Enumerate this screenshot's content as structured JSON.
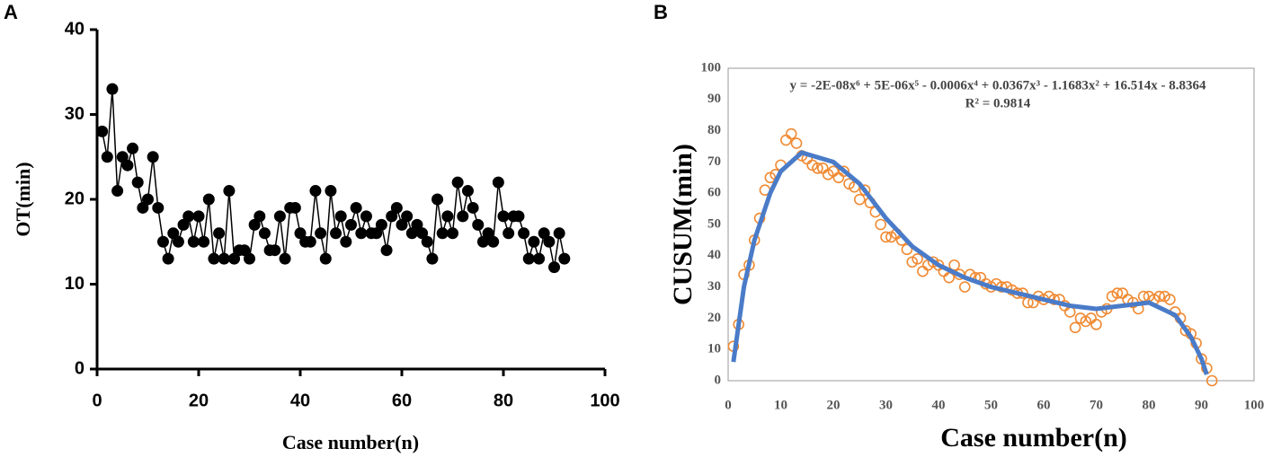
{
  "chart_data": [
    {
      "type": "line",
      "panel": "A",
      "x_label": "Case number(n)",
      "y_label": "OT(min)",
      "xlim": [
        0,
        100
      ],
      "xticks": [
        0,
        20,
        40,
        60,
        80,
        100
      ],
      "ylim": [
        0,
        40
      ],
      "yticks": [
        0,
        10,
        20,
        30,
        40
      ],
      "grid": false,
      "x": [
        1,
        2,
        3,
        4,
        5,
        6,
        7,
        8,
        9,
        10,
        11,
        12,
        13,
        14,
        15,
        16,
        17,
        18,
        19,
        20,
        21,
        22,
        23,
        24,
        25,
        26,
        27,
        28,
        29,
        30,
        31,
        32,
        33,
        34,
        35,
        36,
        37,
        38,
        39,
        40,
        41,
        42,
        43,
        44,
        45,
        46,
        47,
        48,
        49,
        50,
        51,
        52,
        53,
        54,
        55,
        56,
        57,
        58,
        59,
        60,
        61,
        62,
        63,
        64,
        65,
        66,
        67,
        68,
        69,
        70,
        71,
        72,
        73,
        74,
        75,
        76,
        77,
        78,
        79,
        80,
        81,
        82,
        83,
        84,
        85,
        86,
        87,
        88,
        89,
        90,
        91,
        92
      ],
      "series": [
        {
          "color": "#000000",
          "values": [
            28,
            25,
            33,
            21,
            25,
            24,
            26,
            22,
            19,
            20,
            25,
            19,
            15,
            13,
            16,
            15,
            17,
            18,
            15,
            18,
            15,
            20,
            13,
            16,
            13,
            21,
            13,
            14,
            14,
            13,
            17,
            18,
            16,
            14,
            14,
            18,
            13,
            19,
            19,
            16,
            15,
            15,
            21,
            16,
            13,
            21,
            16,
            18,
            15,
            17,
            19,
            16,
            18,
            16,
            16,
            17,
            14,
            18,
            19,
            17,
            18,
            16,
            17,
            16,
            15,
            13,
            20,
            16,
            18,
            16,
            22,
            18,
            21,
            19,
            17,
            15,
            16,
            15,
            22,
            18,
            16,
            18,
            18,
            16,
            13,
            15,
            13,
            16,
            15,
            12,
            16,
            13
          ]
        }
      ]
    },
    {
      "type": "scatter",
      "panel": "B",
      "x_label": "Case number(n)",
      "y_label": "CUSUM(min)",
      "annotations": [
        "y = -2E-08x⁶ + 5E-06x⁵ - 0.0006x⁴ + 0.0367x³ - 1.1683x² + 16.514x - 8.8364",
        "R² = 0.9814"
      ],
      "xlim": [
        0,
        100
      ],
      "xticks": [
        0,
        10,
        20,
        30,
        40,
        50,
        60,
        70,
        80,
        90,
        100
      ],
      "ylim": [
        0,
        100
      ],
      "yticks": [
        0,
        10,
        20,
        30,
        40,
        50,
        60,
        70,
        80,
        90,
        100
      ],
      "grid": false,
      "series": [
        {
          "color": "#f08a33",
          "style": "markers",
          "x": [
            1,
            2,
            3,
            4,
            5,
            6,
            7,
            8,
            9,
            10,
            11,
            12,
            13,
            14,
            15,
            16,
            17,
            18,
            19,
            20,
            21,
            22,
            23,
            24,
            25,
            26,
            27,
            28,
            29,
            30,
            31,
            32,
            33,
            34,
            35,
            36,
            37,
            38,
            39,
            40,
            41,
            42,
            43,
            44,
            45,
            46,
            47,
            48,
            49,
            50,
            51,
            52,
            53,
            54,
            55,
            56,
            57,
            58,
            59,
            60,
            61,
            62,
            63,
            64,
            65,
            66,
            67,
            68,
            69,
            70,
            71,
            72,
            73,
            74,
            75,
            76,
            77,
            78,
            79,
            80,
            81,
            82,
            83,
            84,
            85,
            86,
            87,
            88,
            89,
            90,
            91,
            92
          ],
          "values": [
            11,
            18,
            34,
            37,
            45,
            52,
            61,
            65,
            66,
            69,
            77,
            79,
            76,
            72,
            71,
            69,
            68,
            68,
            66,
            67,
            65,
            67,
            63,
            62,
            58,
            61,
            57,
            54,
            50,
            46,
            46,
            47,
            45,
            42,
            38,
            39,
            35,
            37,
            38,
            37,
            35,
            33,
            37,
            34,
            30,
            34,
            33,
            33,
            31,
            30,
            31,
            30,
            30,
            29,
            28,
            28,
            25,
            25,
            27,
            26,
            27,
            26,
            26,
            24,
            22,
            17,
            20,
            19,
            20,
            18,
            22,
            23,
            27,
            28,
            28,
            26,
            25,
            23,
            27,
            27,
            26,
            27,
            27,
            26,
            22,
            20,
            16,
            15,
            12,
            7,
            4,
            0
          ]
        },
        {
          "color": "#4a7bc8",
          "style": "line",
          "x": [
            1,
            3,
            5,
            8,
            10,
            14,
            20,
            25,
            30,
            35,
            40,
            45,
            50,
            55,
            60,
            65,
            70,
            75,
            80,
            85,
            88,
            90,
            91
          ],
          "values": [
            6,
            30,
            45,
            60,
            67,
            73,
            70,
            63,
            52,
            43,
            37,
            33,
            30,
            28,
            26,
            24,
            23,
            24,
            25,
            21,
            14,
            7,
            2
          ]
        }
      ]
    }
  ]
}
